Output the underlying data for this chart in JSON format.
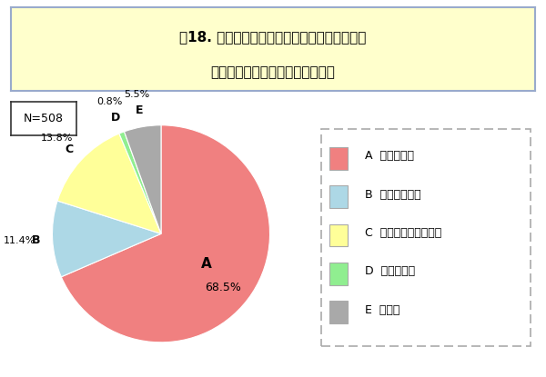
{
  "title_line1": "問18. あなたは、日本の政治にマニフェストは",
  "title_line2": "必要だと思いますか【単数回答】",
  "n_label": "N=508",
  "slices": [
    68.5,
    11.4,
    13.8,
    0.8,
    5.5
  ],
  "labels": [
    "A",
    "B",
    "C",
    "D",
    "E"
  ],
  "pct_labels": [
    "68.5%",
    "11.4%",
    "13.8%",
    "0.8%",
    "5.5%"
  ],
  "colors": [
    "#F08080",
    "#ADD8E6",
    "#FFFF99",
    "#90EE90",
    "#A9A9A9"
  ],
  "legend_labels": [
    "A  必要である",
    "B  必要ではない",
    "C  どちらともいえない",
    "D  わからない",
    "E  無回答"
  ],
  "bg_color": "#FFFFFF",
  "title_bg": "#FFFFCC",
  "title_border": "#99AACC",
  "startangle": 90
}
